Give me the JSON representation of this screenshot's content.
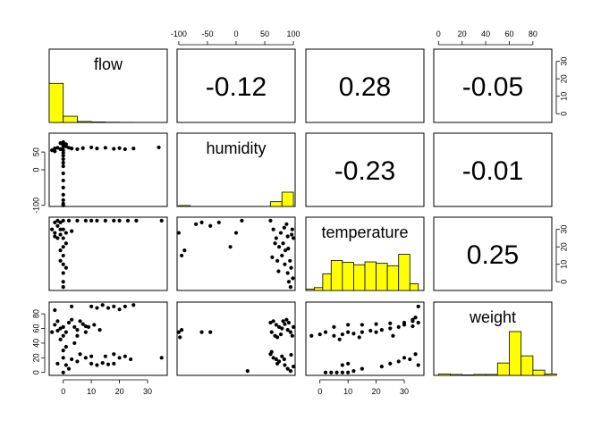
{
  "chart_data": {
    "type": "scatter",
    "variables": [
      "flow",
      "humidity",
      "temperature",
      "weight"
    ],
    "correlations": [
      {
        "row": "flow",
        "col": "humidity",
        "value": "-0.12"
      },
      {
        "row": "flow",
        "col": "temperature",
        "value": "0.28"
      },
      {
        "row": "flow",
        "col": "weight",
        "value": "-0.05"
      },
      {
        "row": "humidity",
        "col": "temperature",
        "value": "-0.23"
      },
      {
        "row": "humidity",
        "col": "weight",
        "value": "-0.01"
      },
      {
        "row": "temperature",
        "col": "weight",
        "value": "0.25"
      }
    ],
    "axes": {
      "flow": {
        "range": [
          -5,
          37
        ],
        "ticks": [
          0,
          10,
          20,
          30
        ]
      },
      "humidity": {
        "range": [
          -103,
          103
        ],
        "ticks": [
          -100,
          -50,
          0,
          50,
          100
        ],
        "left_ticks": [
          -100,
          0,
          50
        ]
      },
      "temperature": {
        "range": [
          -5,
          37
        ],
        "ticks": [
          0,
          10,
          20,
          30
        ]
      },
      "weight": {
        "range": [
          -4,
          96
        ],
        "ticks": [
          0,
          20,
          40,
          60,
          80
        ]
      }
    },
    "histograms": {
      "flow": {
        "breaks": [
          -5,
          0,
          5,
          10,
          15,
          20,
          25,
          30,
          35
        ],
        "counts": [
          0.82,
          0.13,
          0.02,
          0.01,
          0.005,
          0.003,
          0.002,
          0.002
        ]
      },
      "humidity": {
        "breaks": [
          -100,
          -80,
          -60,
          -40,
          -20,
          0,
          20,
          40,
          60,
          80,
          100
        ],
        "counts": [
          0.02,
          0.0,
          0.0,
          0.0,
          0.0,
          0.0,
          0.0,
          0.0,
          0.1,
          0.3,
          0.95
        ]
      },
      "temperature": {
        "breaks": [
          -5,
          -2,
          1,
          4,
          8,
          12,
          16,
          20,
          24,
          28,
          32,
          35
        ],
        "counts": [
          0.03,
          0.06,
          0.35,
          0.63,
          0.59,
          0.54,
          0.6,
          0.57,
          0.52,
          0.76,
          0.14
        ]
      },
      "weight": {
        "breaks": [
          0,
          10,
          20,
          30,
          40,
          50,
          60,
          70,
          80,
          90,
          100
        ],
        "counts": [
          0.03,
          0.02,
          0.01,
          0.02,
          0.02,
          0.26,
          0.92,
          0.41,
          0.11,
          0.03
        ]
      }
    },
    "series": [
      {
        "x_var": "flow",
        "y_var": "humidity",
        "points": [
          [
            -3,
            60
          ],
          [
            -2,
            62
          ],
          [
            -1,
            58
          ],
          [
            0,
            65
          ],
          [
            0,
            70
          ],
          [
            1,
            72
          ],
          [
            -1,
            75
          ],
          [
            0,
            78
          ],
          [
            1,
            66
          ],
          [
            2,
            62
          ],
          [
            3,
            60
          ],
          [
            5,
            58
          ],
          [
            7,
            61
          ],
          [
            10,
            63
          ],
          [
            12,
            60
          ],
          [
            15,
            62
          ],
          [
            18,
            59
          ],
          [
            20,
            61
          ],
          [
            22,
            58
          ],
          [
            25,
            60
          ],
          [
            -4,
            55
          ],
          [
            -3,
            52
          ],
          [
            0,
            55
          ],
          [
            0,
            48
          ],
          [
            0,
            30
          ],
          [
            0,
            10
          ],
          [
            0,
            -10
          ],
          [
            0,
            -30
          ],
          [
            0,
            -50
          ],
          [
            0,
            -70
          ],
          [
            0,
            -85
          ],
          [
            0,
            -95
          ],
          [
            0,
            -100
          ],
          [
            34,
            63
          ],
          [
            0,
            40
          ],
          [
            0,
            20
          ]
        ]
      },
      {
        "x_var": "flow",
        "y_var": "temperature",
        "points": [
          [
            -3,
            34
          ],
          [
            -2,
            35
          ],
          [
            -1,
            34
          ],
          [
            0,
            35
          ],
          [
            2,
            35
          ],
          [
            5,
            35
          ],
          [
            8,
            35
          ],
          [
            10,
            35
          ],
          [
            12,
            35
          ],
          [
            15,
            35
          ],
          [
            18,
            35
          ],
          [
            20,
            35
          ],
          [
            23,
            35
          ],
          [
            26,
            35
          ],
          [
            35,
            35
          ],
          [
            -4,
            30
          ],
          [
            -3,
            28
          ],
          [
            -2,
            32
          ],
          [
            -1,
            30
          ],
          [
            -3,
            26
          ],
          [
            -2,
            25
          ],
          [
            -1,
            27
          ],
          [
            0,
            30
          ],
          [
            0,
            25
          ],
          [
            0,
            20
          ],
          [
            0,
            15
          ],
          [
            0,
            10
          ],
          [
            0,
            5
          ],
          [
            0,
            0
          ],
          [
            0,
            -3
          ],
          [
            -1,
            12
          ],
          [
            1,
            8
          ],
          [
            -1,
            18
          ],
          [
            1,
            22
          ],
          [
            1,
            28
          ],
          [
            3,
            29
          ]
        ]
      },
      {
        "x_var": "flow",
        "y_var": "weight",
        "points": [
          [
            -3,
            65
          ],
          [
            -2,
            70
          ],
          [
            -1,
            60
          ],
          [
            0,
            62
          ],
          [
            1,
            55
          ],
          [
            2,
            68
          ],
          [
            3,
            72
          ],
          [
            4,
            62
          ],
          [
            5,
            58
          ],
          [
            6,
            70
          ],
          [
            7,
            66
          ],
          [
            8,
            63
          ],
          [
            10,
            90
          ],
          [
            12,
            88
          ],
          [
            14,
            92
          ],
          [
            16,
            88
          ],
          [
            18,
            90
          ],
          [
            20,
            86
          ],
          [
            22,
            90
          ],
          [
            25,
            92
          ],
          [
            3,
            90
          ],
          [
            -3,
            85
          ],
          [
            5,
            50
          ],
          [
            8,
            55
          ],
          [
            -4,
            55
          ],
          [
            -2,
            57
          ],
          [
            0,
            50
          ],
          [
            -1,
            45
          ],
          [
            0,
            30
          ],
          [
            0,
            20
          ],
          [
            1,
            10
          ],
          [
            2,
            5
          ],
          [
            -2,
            12
          ],
          [
            0,
            0
          ],
          [
            3,
            18
          ],
          [
            5,
            15
          ],
          [
            8,
            20
          ],
          [
            10,
            22
          ],
          [
            15,
            22
          ],
          [
            18,
            25
          ],
          [
            20,
            20
          ],
          [
            22,
            22
          ],
          [
            24,
            18
          ],
          [
            35,
            20
          ],
          [
            10,
            12
          ],
          [
            12,
            10
          ],
          [
            14,
            13
          ],
          [
            16,
            11
          ],
          [
            18,
            12
          ],
          [
            1,
            35
          ],
          [
            4,
            40
          ],
          [
            6,
            25
          ],
          [
            9,
            62
          ],
          [
            11,
            65
          ],
          [
            13,
            58
          ]
        ]
      },
      {
        "x_var": "humidity",
        "y_var": "temperature",
        "points": [
          [
            -100,
            28
          ],
          [
            -90,
            18
          ],
          [
            -95,
            15
          ],
          [
            -70,
            33
          ],
          [
            -60,
            34
          ],
          [
            -45,
            32
          ],
          [
            -30,
            34
          ],
          [
            -10,
            20
          ],
          [
            10,
            35
          ],
          [
            0,
            28
          ],
          [
            60,
            35
          ],
          [
            65,
            30
          ],
          [
            70,
            25
          ],
          [
            75,
            20
          ],
          [
            80,
            15
          ],
          [
            85,
            10
          ],
          [
            90,
            5
          ],
          [
            92,
            0
          ],
          [
            95,
            -3
          ],
          [
            98,
            30
          ],
          [
            100,
            25
          ],
          [
            88,
            33
          ],
          [
            72,
            12
          ],
          [
            78,
            28
          ],
          [
            82,
            22
          ],
          [
            86,
            18
          ],
          [
            90,
            26
          ],
          [
            94,
            12
          ],
          [
            96,
            8
          ],
          [
            99,
            2
          ],
          [
            68,
            22
          ],
          [
            74,
            6
          ],
          [
            84,
            31
          ],
          [
            91,
            19
          ],
          [
            97,
            27
          ],
          [
            63,
            14
          ]
        ]
      },
      {
        "x_var": "humidity",
        "y_var": "weight",
        "points": [
          [
            -100,
            55
          ],
          [
            -98,
            48
          ],
          [
            -95,
            58
          ],
          [
            -60,
            55
          ],
          [
            -45,
            55
          ],
          [
            20,
            2
          ],
          [
            60,
            68
          ],
          [
            65,
            70
          ],
          [
            70,
            65
          ],
          [
            75,
            62
          ],
          [
            80,
            60
          ],
          [
            85,
            66
          ],
          [
            90,
            58
          ],
          [
            95,
            55
          ],
          [
            100,
            62
          ],
          [
            62,
            55
          ],
          [
            68,
            50
          ],
          [
            72,
            48
          ],
          [
            78,
            52
          ],
          [
            82,
            70
          ],
          [
            88,
            72
          ],
          [
            92,
            68
          ],
          [
            98,
            50
          ],
          [
            60,
            25
          ],
          [
            65,
            20
          ],
          [
            70,
            18
          ],
          [
            75,
            15
          ],
          [
            80,
            22
          ],
          [
            85,
            10
          ],
          [
            90,
            5
          ],
          [
            95,
            2
          ],
          [
            100,
            8
          ],
          [
            62,
            28
          ],
          [
            72,
            12
          ],
          [
            84,
            18
          ],
          [
            96,
            24
          ]
        ]
      },
      {
        "x_var": "temperature",
        "y_var": "weight",
        "points": [
          [
            -3,
            50
          ],
          [
            0,
            52
          ],
          [
            2,
            55
          ],
          [
            5,
            50
          ],
          [
            8,
            52
          ],
          [
            10,
            55
          ],
          [
            12,
            53
          ],
          [
            15,
            55
          ],
          [
            18,
            57
          ],
          [
            20,
            55
          ],
          [
            22,
            58
          ],
          [
            25,
            60
          ],
          [
            28,
            62
          ],
          [
            30,
            65
          ],
          [
            33,
            63
          ],
          [
            35,
            68
          ],
          [
            5,
            62
          ],
          [
            10,
            65
          ],
          [
            15,
            65
          ],
          [
            20,
            66
          ],
          [
            25,
            67
          ],
          [
            30,
            68
          ],
          [
            33,
            70
          ],
          [
            35,
            90
          ],
          [
            34,
            75
          ],
          [
            33,
            72
          ],
          [
            2,
            0
          ],
          [
            4,
            0
          ],
          [
            6,
            0
          ],
          [
            8,
            0
          ],
          [
            10,
            0
          ],
          [
            12,
            2
          ],
          [
            8,
            10
          ],
          [
            10,
            12
          ],
          [
            15,
            5
          ],
          [
            22,
            8
          ],
          [
            25,
            12
          ],
          [
            28,
            15
          ],
          [
            30,
            20
          ],
          [
            32,
            18
          ],
          [
            34,
            25
          ],
          [
            35,
            10
          ],
          [
            7,
            45
          ],
          [
            14,
            48
          ],
          [
            26,
            50
          ]
        ]
      }
    ]
  }
}
